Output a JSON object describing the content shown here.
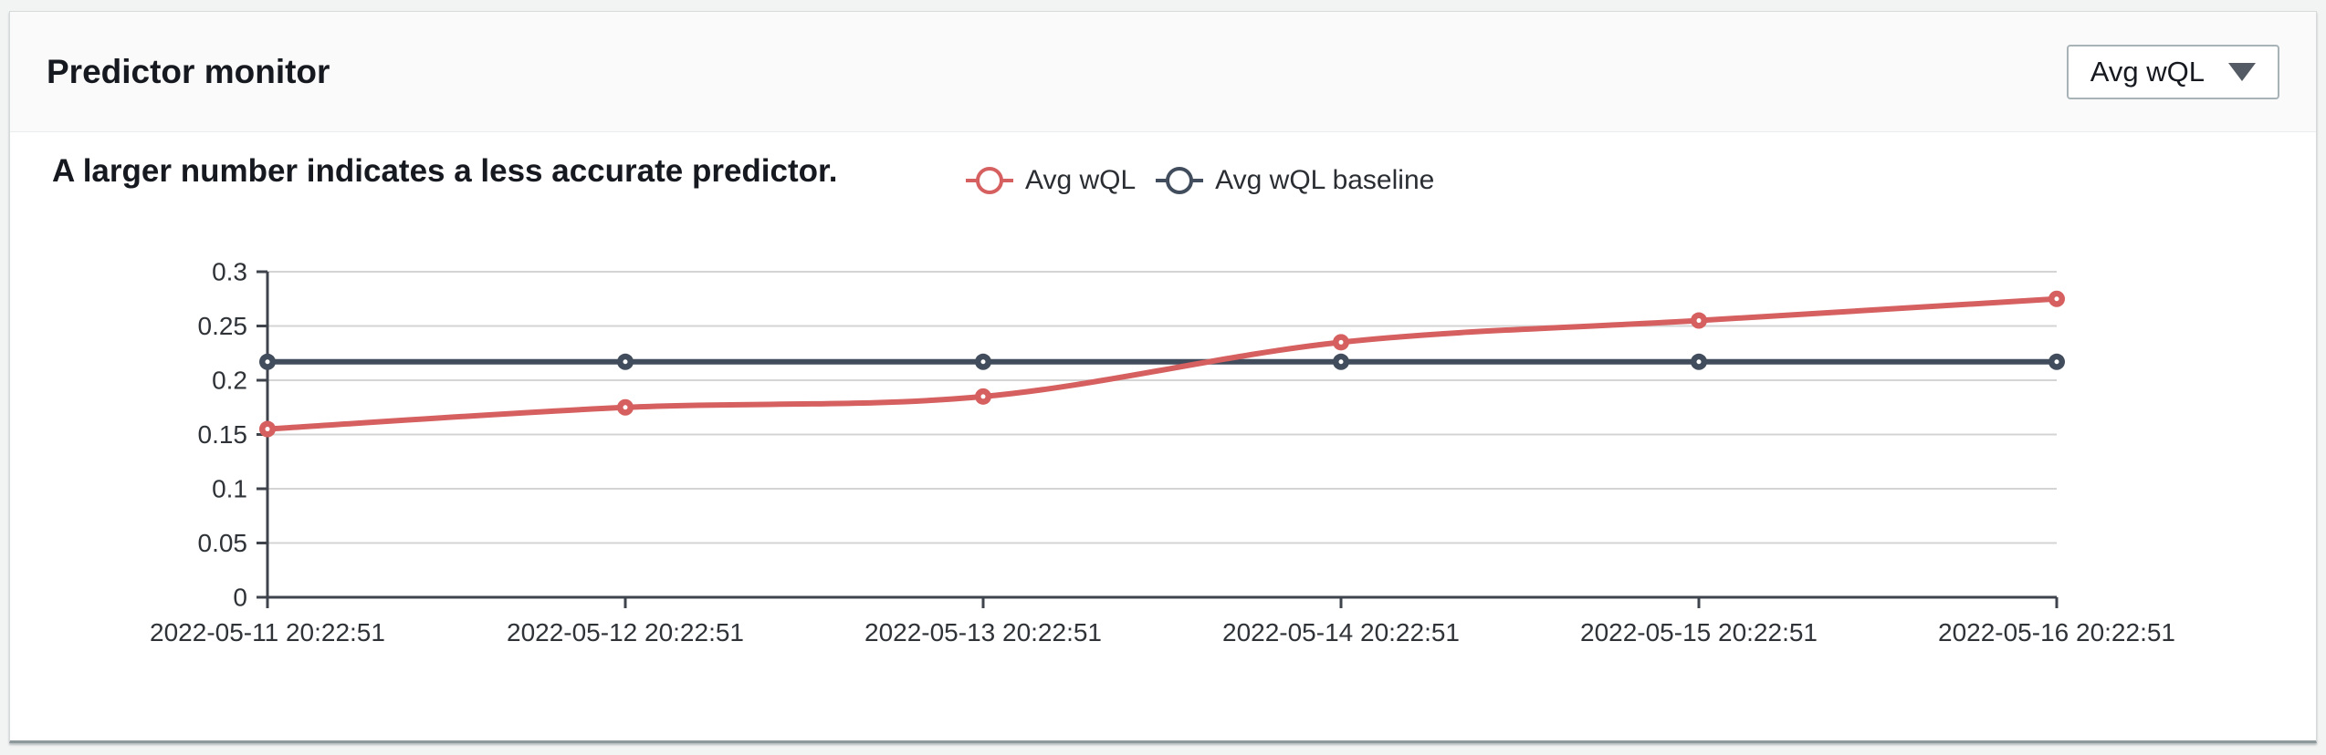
{
  "page": {
    "background": "#f2f3f3"
  },
  "panel": {
    "title": "Predictor monitor",
    "metric_dropdown": {
      "value": "Avg wQL",
      "icon": "caret-down-icon"
    },
    "subtitle": "A larger number indicates a less accurate predictor."
  },
  "legend": {
    "items": [
      {
        "label": "Avg wQL",
        "color": "#d65f5f"
      },
      {
        "label": "Avg wQL baseline",
        "color": "#414d5c"
      }
    ]
  },
  "chart_data": {
    "type": "line",
    "title": "",
    "xlabel": "",
    "ylabel": "",
    "x": [
      "2022-05-11 20:22:51",
      "2022-05-12 20:22:51",
      "2022-05-13 20:22:51",
      "2022-05-14 20:22:51",
      "2022-05-15 20:22:51",
      "2022-05-16 20:22:51"
    ],
    "series": [
      {
        "name": "Avg wQL",
        "color": "#d65f5f",
        "smooth": true,
        "values": [
          0.155,
          0.175,
          0.185,
          0.235,
          0.255,
          0.275
        ]
      },
      {
        "name": "Avg wQL baseline",
        "color": "#414d5c",
        "smooth": false,
        "values": [
          0.217,
          0.217,
          0.217,
          0.217,
          0.217,
          0.217
        ]
      }
    ],
    "ylim": [
      0,
      0.3
    ],
    "yticks": [
      0,
      0.05,
      0.1,
      0.15,
      0.2,
      0.25,
      0.3
    ],
    "ytick_labels": [
      "0",
      "0.05",
      "0.1",
      "0.15",
      "0.2",
      "0.25",
      "0.3"
    ],
    "grid": true,
    "legend_position": "top"
  }
}
